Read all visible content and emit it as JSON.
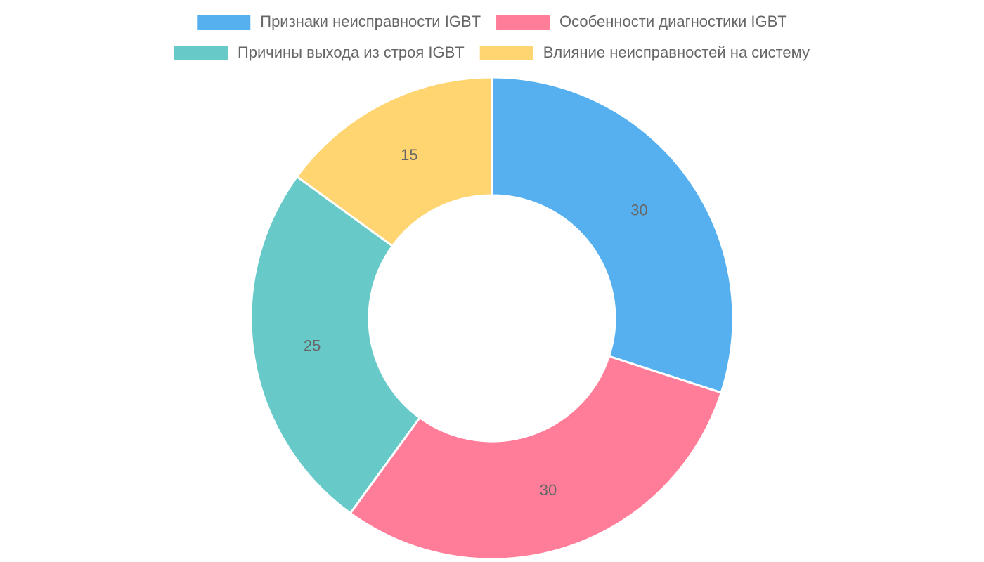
{
  "chart_data": {
    "type": "doughnut",
    "categories": [
      "Признаки неисправности IGBT",
      "Особенности диагностики IGBT",
      "Причины выхода из строя IGBT",
      "Влияние неисправностей на систему"
    ],
    "values": [
      30,
      30,
      25,
      15
    ],
    "colors": [
      "#56b0f0",
      "#ff7d98",
      "#68c9c9",
      "#ffd572"
    ],
    "legend": "top"
  }
}
